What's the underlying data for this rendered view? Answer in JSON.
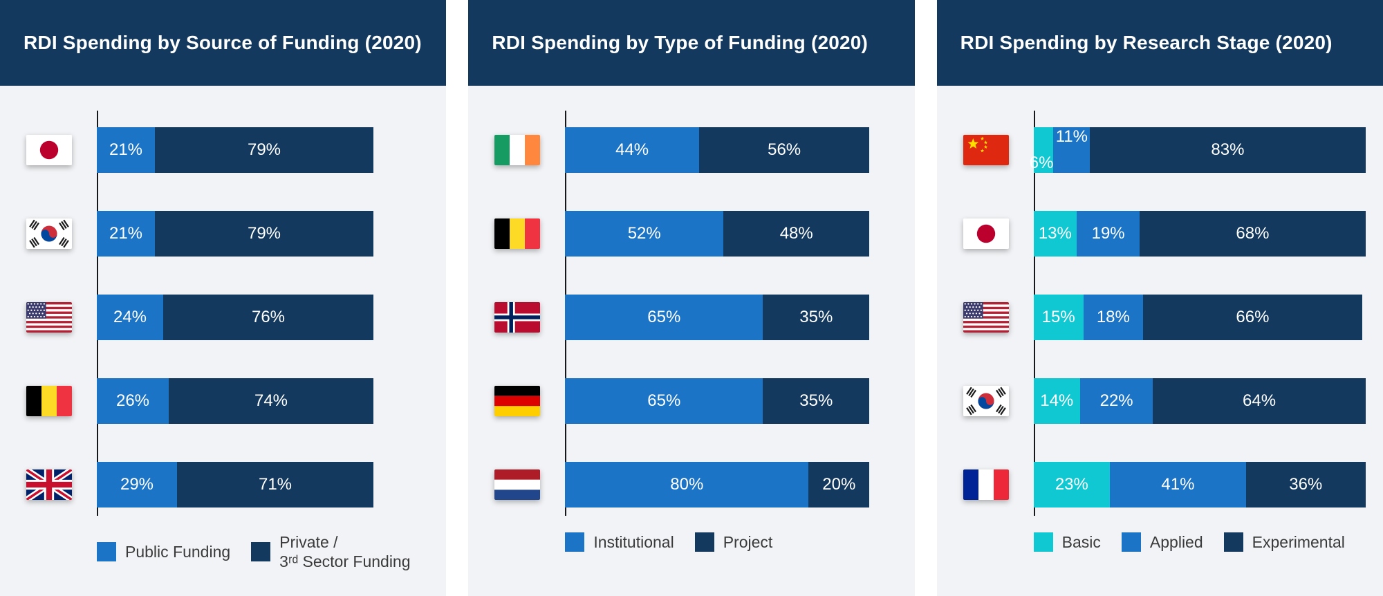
{
  "colors": {
    "header_bg": "#14395f",
    "panel_bg": "#f2f3f6",
    "navy": "#14395f",
    "blue": "#1b74c5",
    "cyan": "#10c8d2",
    "bar_label": "#ffffff",
    "axis": "#16171b",
    "legend_text": "#3a3a3a"
  },
  "chart_data": [
    {
      "type": "bar",
      "stacked": true,
      "orientation": "horizontal",
      "title": "RDI Spending by Source of Funding (2020)",
      "xlim": [
        0,
        100
      ],
      "value_suffix": "%",
      "grid": false,
      "legend_position": "bottom",
      "series": [
        {
          "name": "Public Funding",
          "slug": "public-funding",
          "color": "blue",
          "legend": "Public Funding"
        },
        {
          "name": "Private / 3rd Sector Funding",
          "slug": "private-3rd-sector-funding",
          "color": "navy",
          "legend": "Private /\n3ʳᵈ Sector Funding"
        }
      ],
      "categories": [
        "Japan",
        "South Korea",
        "United States",
        "Belgium",
        "United Kingdom"
      ],
      "flags": [
        "japan",
        "south-korea",
        "usa",
        "belgium",
        "uk"
      ],
      "values": [
        [
          21,
          79
        ],
        [
          21,
          79
        ],
        [
          24,
          76
        ],
        [
          26,
          74
        ],
        [
          29,
          71
        ]
      ]
    },
    {
      "type": "bar",
      "stacked": true,
      "orientation": "horizontal",
      "title": "RDI Spending by Type of Funding (2020)",
      "xlim": [
        0,
        100
      ],
      "value_suffix": "%",
      "grid": false,
      "legend_position": "bottom",
      "series": [
        {
          "name": "Institutional",
          "slug": "institutional",
          "color": "blue",
          "legend": "Institutional"
        },
        {
          "name": "Project",
          "slug": "project",
          "color": "navy",
          "legend": "Project"
        }
      ],
      "categories": [
        "Ireland",
        "Belgium",
        "Norway",
        "Germany",
        "Netherlands"
      ],
      "flags": [
        "ireland",
        "belgium",
        "norway",
        "germany",
        "netherlands"
      ],
      "values": [
        [
          44,
          56
        ],
        [
          52,
          48
        ],
        [
          65,
          35
        ],
        [
          65,
          35
        ],
        [
          80,
          20
        ]
      ]
    },
    {
      "type": "bar",
      "stacked": true,
      "orientation": "horizontal",
      "title": "RDI Spending by Research Stage (2020)",
      "xlim": [
        0,
        100
      ],
      "value_suffix": "%",
      "grid": false,
      "legend_position": "bottom",
      "series": [
        {
          "name": "Basic",
          "slug": "basic",
          "color": "cyan",
          "legend": "Basic"
        },
        {
          "name": "Applied",
          "slug": "applied",
          "color": "blue",
          "legend": "Applied"
        },
        {
          "name": "Experimental",
          "slug": "experimental",
          "color": "navy",
          "legend": "Experimental"
        }
      ],
      "categories": [
        "China",
        "Japan",
        "United States",
        "South Korea",
        "France"
      ],
      "flags": [
        "china",
        "japan",
        "usa",
        "south-korea",
        "france"
      ],
      "values": [
        [
          6,
          11,
          83
        ],
        [
          13,
          19,
          68
        ],
        [
          15,
          18,
          66
        ],
        [
          14,
          22,
          64
        ],
        [
          23,
          41,
          36
        ]
      ]
    }
  ]
}
